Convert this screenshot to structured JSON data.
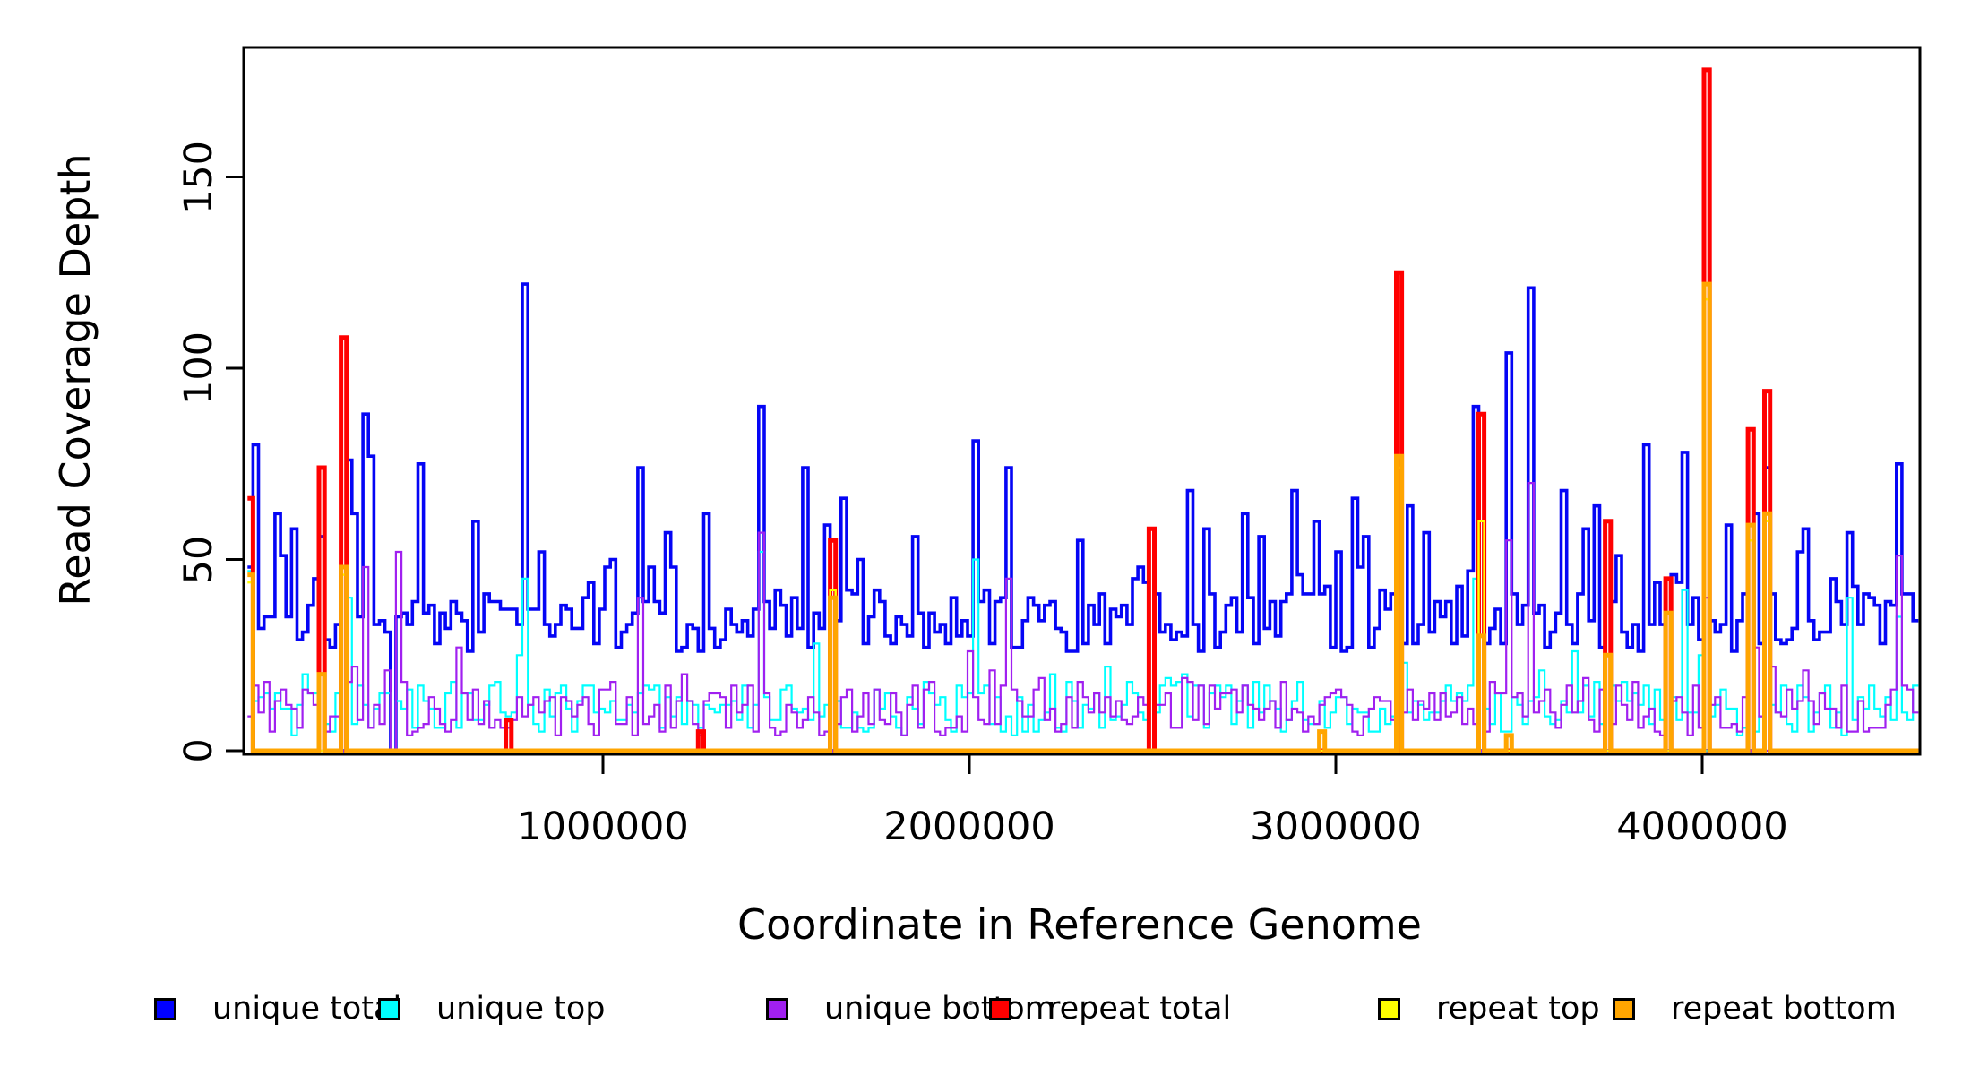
{
  "chart_data": {
    "type": "line",
    "subtype": "step-coverage",
    "title": "",
    "xlabel": "Coordinate in Reference Genome",
    "ylabel": "Read Coverage Depth",
    "xlim": [
      30000,
      4590000
    ],
    "ylim": [
      0,
      184
    ],
    "grid": false,
    "x_ticks": [
      {
        "value": 1000000,
        "label": "1000000"
      },
      {
        "value": 2000000,
        "label": "2000000"
      },
      {
        "value": 3000000,
        "label": "3000000"
      },
      {
        "value": 4000000,
        "label": "4000000"
      }
    ],
    "y_ticks": [
      {
        "value": 0,
        "label": "0"
      },
      {
        "value": 50,
        "label": "50"
      },
      {
        "value": 100,
        "label": "100"
      },
      {
        "value": 150,
        "label": "150"
      }
    ],
    "legend_position": "bottom",
    "bin_bp": 15000,
    "noise_seed": 1337,
    "zero_dip_coords": [
      225000,
      280000,
      425000,
      1620000,
      2490000,
      3160000,
      3390000,
      3730000,
      3900000,
      4000000,
      4130000,
      4170000
    ],
    "series": [
      {
        "name": "unique total",
        "color": "#0505f5",
        "line_width": 3.6,
        "baseline": {
          "base": 26,
          "amp": 16,
          "spike_p": 0.22,
          "spike_amp": 24,
          "min": 21
        },
        "peaks": [
          [
            40000,
            80
          ],
          [
            100000,
            62
          ],
          [
            155000,
            58
          ],
          [
            230000,
            56
          ],
          [
            300000,
            76
          ],
          [
            315000,
            62
          ],
          [
            350000,
            88
          ],
          [
            365000,
            77
          ],
          [
            500000,
            75
          ],
          [
            640000,
            60
          ],
          [
            780000,
            122
          ],
          [
            1100000,
            74
          ],
          [
            1280000,
            62
          ],
          [
            1420000,
            90
          ],
          [
            1550000,
            74
          ],
          [
            1650000,
            66
          ],
          [
            2010000,
            81
          ],
          [
            2100000,
            74
          ],
          [
            2300000,
            55
          ],
          [
            2600000,
            68
          ],
          [
            2750000,
            62
          ],
          [
            2880000,
            68
          ],
          [
            3050000,
            66
          ],
          [
            3200000,
            64
          ],
          [
            3370000,
            90
          ],
          [
            3470000,
            104
          ],
          [
            3530000,
            121
          ],
          [
            3620000,
            68
          ],
          [
            3700000,
            64
          ],
          [
            3840000,
            80
          ],
          [
            3940000,
            78
          ],
          [
            4170000,
            74
          ],
          [
            4280000,
            58
          ],
          [
            4390000,
            57
          ],
          [
            4530000,
            75
          ]
        ]
      },
      {
        "name": "unique top",
        "color": "#00ffff",
        "line_width": 2.2,
        "baseline": {
          "base": 4,
          "amp": 14,
          "spike_p": 0.12,
          "spike_amp": 13,
          "min": 1
        },
        "peaks": [
          [
            30000,
            47
          ],
          [
            300000,
            40
          ],
          [
            780000,
            45
          ],
          [
            1420000,
            52
          ],
          [
            2010000,
            50
          ],
          [
            3370000,
            45
          ],
          [
            3940000,
            42
          ],
          [
            4390000,
            40
          ],
          [
            4530000,
            35
          ]
        ]
      },
      {
        "name": "unique bottom",
        "color": "#a020f0",
        "line_width": 2.2,
        "baseline": {
          "base": 4,
          "amp": 14,
          "spike_p": 0.12,
          "spike_amp": 13,
          "min": 1
        },
        "peaks": [
          [
            350000,
            48
          ],
          [
            430000,
            52
          ],
          [
            1100000,
            40
          ],
          [
            1420000,
            57
          ],
          [
            2100000,
            45
          ],
          [
            3470000,
            55
          ],
          [
            3530000,
            70
          ],
          [
            4000000,
            40
          ],
          [
            4530000,
            51
          ]
        ]
      },
      {
        "name": "repeat total",
        "color": "#ff0000",
        "line_width": 5,
        "baseline": null,
        "peaks": [
          [
            30000,
            66
          ],
          [
            225000,
            74
          ],
          [
            280000,
            108
          ],
          [
            730000,
            8
          ],
          [
            1260000,
            5
          ],
          [
            1620000,
            55
          ],
          [
            2490000,
            58
          ],
          [
            3160000,
            125
          ],
          [
            3390000,
            88
          ],
          [
            3730000,
            60
          ],
          [
            3900000,
            45
          ],
          [
            4000000,
            178
          ],
          [
            4130000,
            84
          ],
          [
            4170000,
            94
          ]
        ]
      },
      {
        "name": "repeat top",
        "color": "#ffff00",
        "line_width": 2.5,
        "baseline": null,
        "peaks": [
          [
            30000,
            44
          ],
          [
            280000,
            46
          ],
          [
            1620000,
            42
          ],
          [
            3160000,
            74
          ],
          [
            3390000,
            60
          ],
          [
            4000000,
            118
          ],
          [
            4130000,
            55
          ],
          [
            4170000,
            60
          ]
        ]
      },
      {
        "name": "repeat bottom",
        "color": "#ffa500",
        "line_width": 5,
        "baseline": null,
        "peaks": [
          [
            30000,
            46
          ],
          [
            225000,
            20
          ],
          [
            280000,
            48
          ],
          [
            1620000,
            40
          ],
          [
            2950000,
            5
          ],
          [
            3160000,
            77
          ],
          [
            3390000,
            30
          ],
          [
            3470000,
            4
          ],
          [
            3730000,
            25
          ],
          [
            3900000,
            36
          ],
          [
            4000000,
            122
          ],
          [
            4130000,
            59
          ],
          [
            4170000,
            62
          ]
        ]
      }
    ]
  },
  "axes": {
    "xlabel": "Coordinate in Reference Genome",
    "ylabel": "Read Coverage Depth"
  },
  "legend": {
    "items": [
      {
        "label": "unique total",
        "color": "#0000ff"
      },
      {
        "label": "unique top",
        "color": "#00ffff"
      },
      {
        "label": "unique bottom",
        "color": "#a020f0"
      },
      {
        "label": "repeat total",
        "color": "#ff0000"
      },
      {
        "label": "repeat top",
        "color": "#ffff00"
      },
      {
        "label": "repeat bottom",
        "color": "#ffa500"
      }
    ],
    "stray_mark": "·"
  }
}
